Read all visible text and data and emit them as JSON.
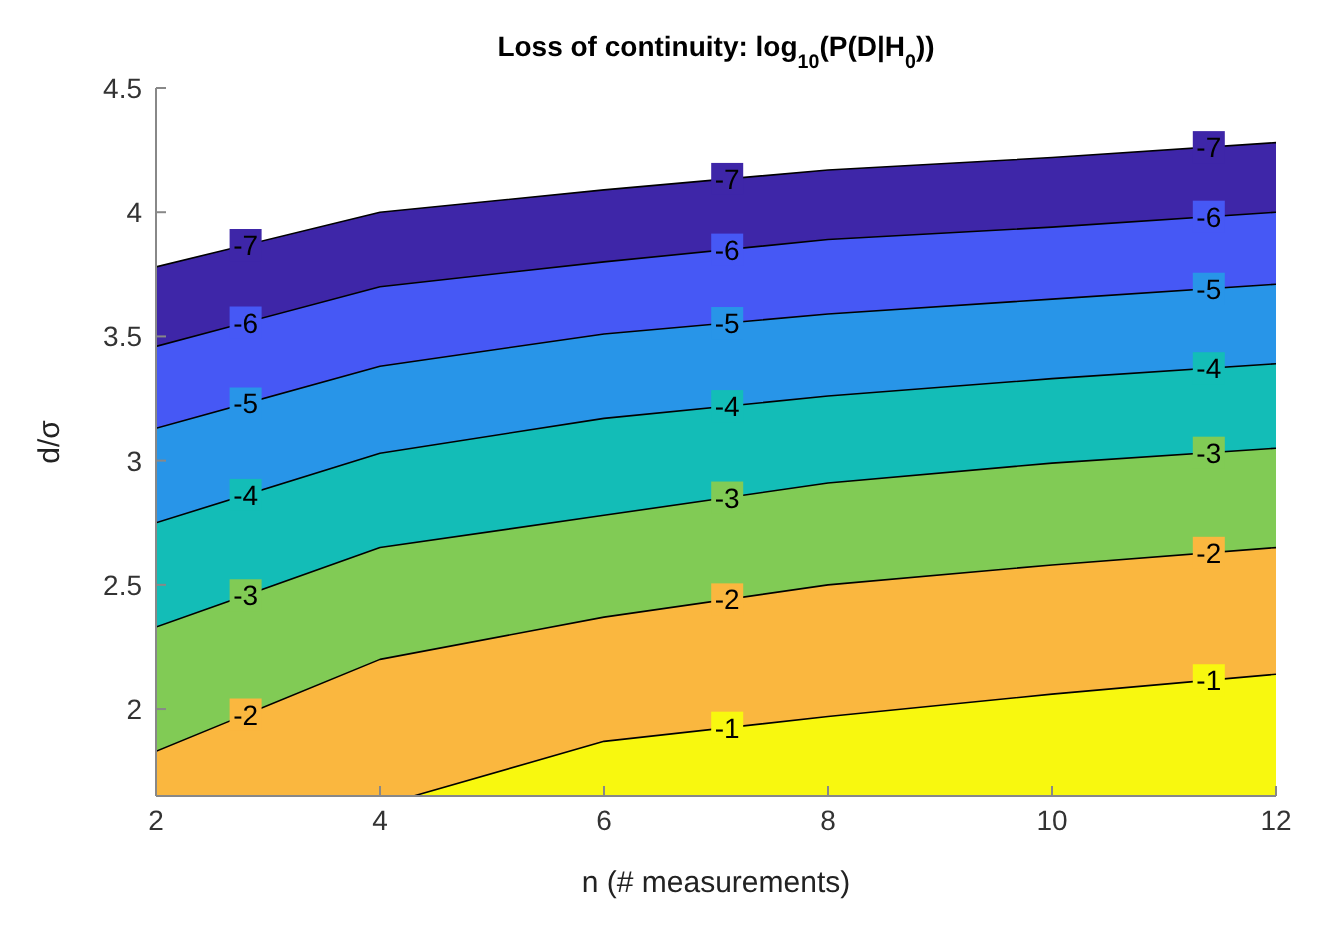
{
  "chart_data": {
    "type": "area",
    "title": "Loss of continuity: log$_{10}$(P(D|H$_{0}$))",
    "xlabel": "n (# measurements)",
    "ylabel": "d/σ",
    "xlim": [
      2,
      12
    ],
    "xticks": [
      2,
      4,
      6,
      8,
      10,
      12
    ],
    "ylim": [
      1.65,
      4.5
    ],
    "yticks": [
      2,
      2.5,
      3,
      3.5,
      4,
      4.5
    ],
    "grid": false,
    "series": [
      {
        "name": "-7",
        "color": "#3e26a8",
        "x": [
          2,
          4,
          6,
          8,
          10,
          12
        ],
        "values": [
          3.78,
          4.0,
          4.09,
          4.17,
          4.22,
          4.28
        ]
      },
      {
        "name": "-6",
        "color": "#4658f5",
        "x": [
          2,
          4,
          6,
          8,
          10,
          12
        ],
        "values": [
          3.46,
          3.7,
          3.8,
          3.89,
          3.94,
          4.0
        ]
      },
      {
        "name": "-5",
        "color": "#2895e8",
        "x": [
          2,
          4,
          6,
          8,
          10,
          12
        ],
        "values": [
          3.13,
          3.38,
          3.51,
          3.59,
          3.65,
          3.71
        ]
      },
      {
        "name": "-4",
        "color": "#13bdb7",
        "x": [
          2,
          4,
          6,
          8,
          10,
          12
        ],
        "values": [
          2.75,
          3.03,
          3.17,
          3.26,
          3.33,
          3.39
        ]
      },
      {
        "name": "-3",
        "color": "#81cb55",
        "x": [
          2,
          4,
          6,
          8,
          10,
          12
        ],
        "values": [
          2.33,
          2.65,
          2.78,
          2.91,
          2.99,
          3.05
        ]
      },
      {
        "name": "-2",
        "color": "#fab73f",
        "x": [
          2,
          4,
          6,
          8,
          10,
          12
        ],
        "values": [
          1.83,
          2.2,
          2.37,
          2.5,
          2.58,
          2.65
        ]
      },
      {
        "name": "-1",
        "color": "#f8f80f",
        "x": [
          4.3,
          6,
          8,
          10,
          12
        ],
        "values": [
          1.65,
          1.87,
          1.97,
          2.06,
          2.14
        ]
      }
    ]
  }
}
